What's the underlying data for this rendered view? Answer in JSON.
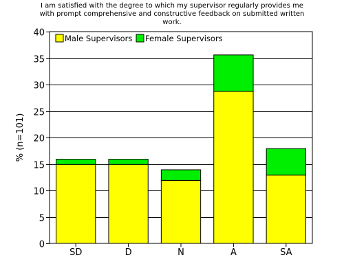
{
  "chart_data": {
    "type": "bar",
    "stacked": true,
    "title_lines": [
      "I am satisfied with the degree to which my supervisor regularly provides me",
      "with prompt comprehensive and constructive feedback on submitted written",
      "work."
    ],
    "categories": [
      "SD",
      "D",
      "N",
      "A",
      "SA"
    ],
    "series": [
      {
        "name": "Male Supervisors",
        "color": "#ffff00",
        "values": [
          14.9,
          14.9,
          11.9,
          28.7,
          12.9
        ]
      },
      {
        "name": "Female Supervisors",
        "color": "#00ee00",
        "values": [
          1.0,
          1.0,
          2.0,
          6.9,
          5.0
        ]
      }
    ],
    "xlabel": "",
    "ylabel": "% (n=101)",
    "ylim": [
      0,
      40
    ],
    "yticks": [
      "0",
      "5",
      "10",
      "15",
      "20",
      "25",
      "30",
      "35",
      "40"
    ],
    "grid": true,
    "legend_position": "top-left"
  }
}
